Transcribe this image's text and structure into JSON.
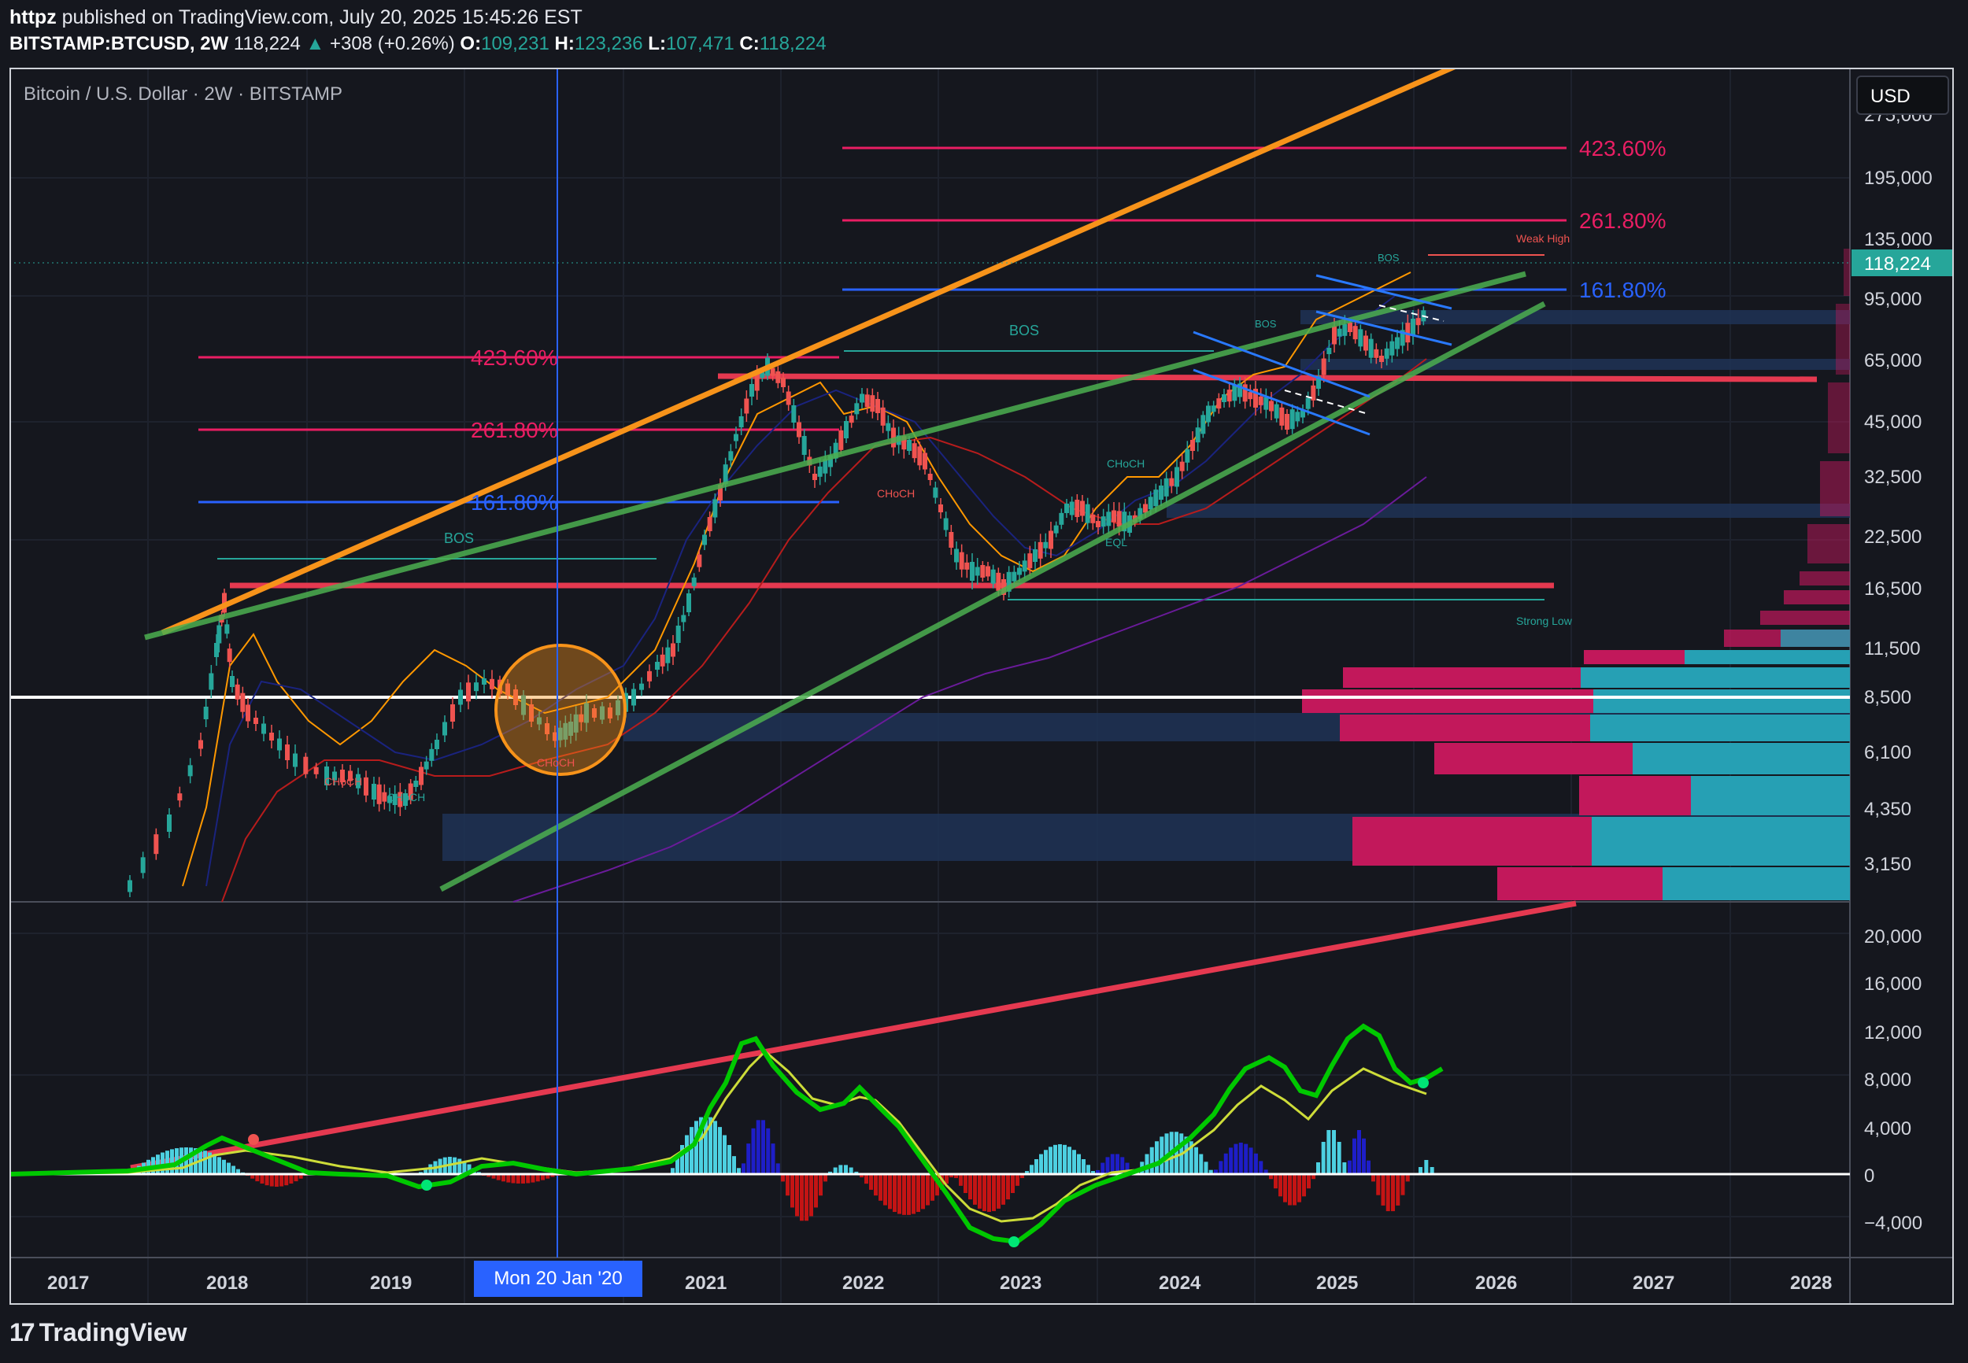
{
  "header": {
    "author": "httpz",
    "published": "published on TradingView.com, July 20, 2025 15:45:26 EST"
  },
  "quote": {
    "symbol": "BITSTAMP:BTCUSD, 2W",
    "last": "118,224",
    "change": "+308 (+0.26%)",
    "open_label": "O:",
    "open": "109,231",
    "high_label": "H:",
    "high": "123,236",
    "low_label": "L:",
    "low": "107,471",
    "close_label": "C:",
    "close": "118,224"
  },
  "chart": {
    "title": "Bitcoin / U.S. Dollar · 2W · BITSTAMP",
    "currency_button": "USD",
    "crosshair_date": "Mon 20 Jan '20",
    "price_axis": [
      "275,000",
      "195,000",
      "135,000",
      "95,000",
      "65,000",
      "45,000",
      "32,500",
      "22,500",
      "16,500",
      "11,500",
      "8,500",
      "6,100",
      "4,350",
      "3,150"
    ],
    "price_label_current": "118,224",
    "oscillator_axis": [
      "20,000",
      "16,000",
      "12,000",
      "8,000",
      "4,000",
      "0",
      "−4,000"
    ],
    "time_axis": [
      "2017",
      "2018",
      "2019",
      "2021",
      "2022",
      "2023",
      "2024",
      "2025",
      "2026",
      "2027",
      "2028"
    ],
    "fib_labels_right": [
      "423.60%",
      "261.80%",
      "161.80%"
    ],
    "fib_labels_left": [
      "423.60%",
      "261.80%",
      "161.80%"
    ],
    "annotations": {
      "bos": "BOS",
      "choch": "CHoCH",
      "eql": "EQL",
      "weak_high": "Weak High",
      "strong_low": "Strong Low"
    },
    "colors": {
      "background": "#15171e",
      "orange_trend": "#f7931a",
      "green_trend": "#4caf50",
      "red_line": "#e53950",
      "fib_pink": "#e91e63",
      "fib_blue": "#2962ff",
      "up_candle": "#26a69a",
      "down_candle": "#ef5350",
      "volume_pink": "#c2185b",
      "volume_teal": "#26a0b4"
    }
  },
  "brand": {
    "name": "TradingView"
  }
}
